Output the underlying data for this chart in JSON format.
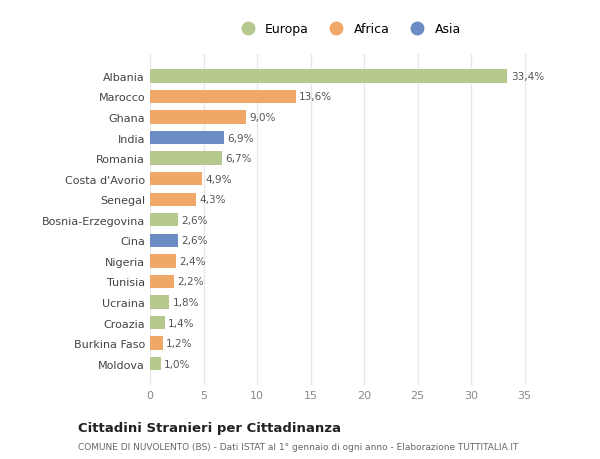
{
  "countries": [
    "Albania",
    "Marocco",
    "Ghana",
    "India",
    "Romania",
    "Costa d'Avorio",
    "Senegal",
    "Bosnia-Erzegovina",
    "Cina",
    "Nigeria",
    "Tunisia",
    "Ucraina",
    "Croazia",
    "Burkina Faso",
    "Moldova"
  ],
  "values": [
    33.4,
    13.6,
    9.0,
    6.9,
    6.7,
    4.9,
    4.3,
    2.6,
    2.6,
    2.4,
    2.2,
    1.8,
    1.4,
    1.2,
    1.0
  ],
  "labels": [
    "33,4%",
    "13,6%",
    "9,0%",
    "6,9%",
    "6,7%",
    "4,9%",
    "4,3%",
    "2,6%",
    "2,6%",
    "2,4%",
    "2,2%",
    "1,8%",
    "1,4%",
    "1,2%",
    "1,0%"
  ],
  "continents": [
    "Europa",
    "Africa",
    "Africa",
    "Asia",
    "Europa",
    "Africa",
    "Africa",
    "Europa",
    "Asia",
    "Africa",
    "Africa",
    "Europa",
    "Europa",
    "Africa",
    "Europa"
  ],
  "colors": {
    "Europa": "#b5c98e",
    "Africa": "#f0a868",
    "Asia": "#6b8cc4"
  },
  "bg_color": "#ffffff",
  "grid_color": "#e8e8e8",
  "title1": "Cittadini Stranieri per Cittadinanza",
  "title2": "COMUNE DI NUVOLENTO (BS) - Dati ISTAT al 1° gennaio di ogni anno - Elaborazione TUTTITALIA.IT",
  "xlim": [
    0,
    37
  ],
  "xticks": [
    0,
    5,
    10,
    15,
    20,
    25,
    30,
    35
  ]
}
